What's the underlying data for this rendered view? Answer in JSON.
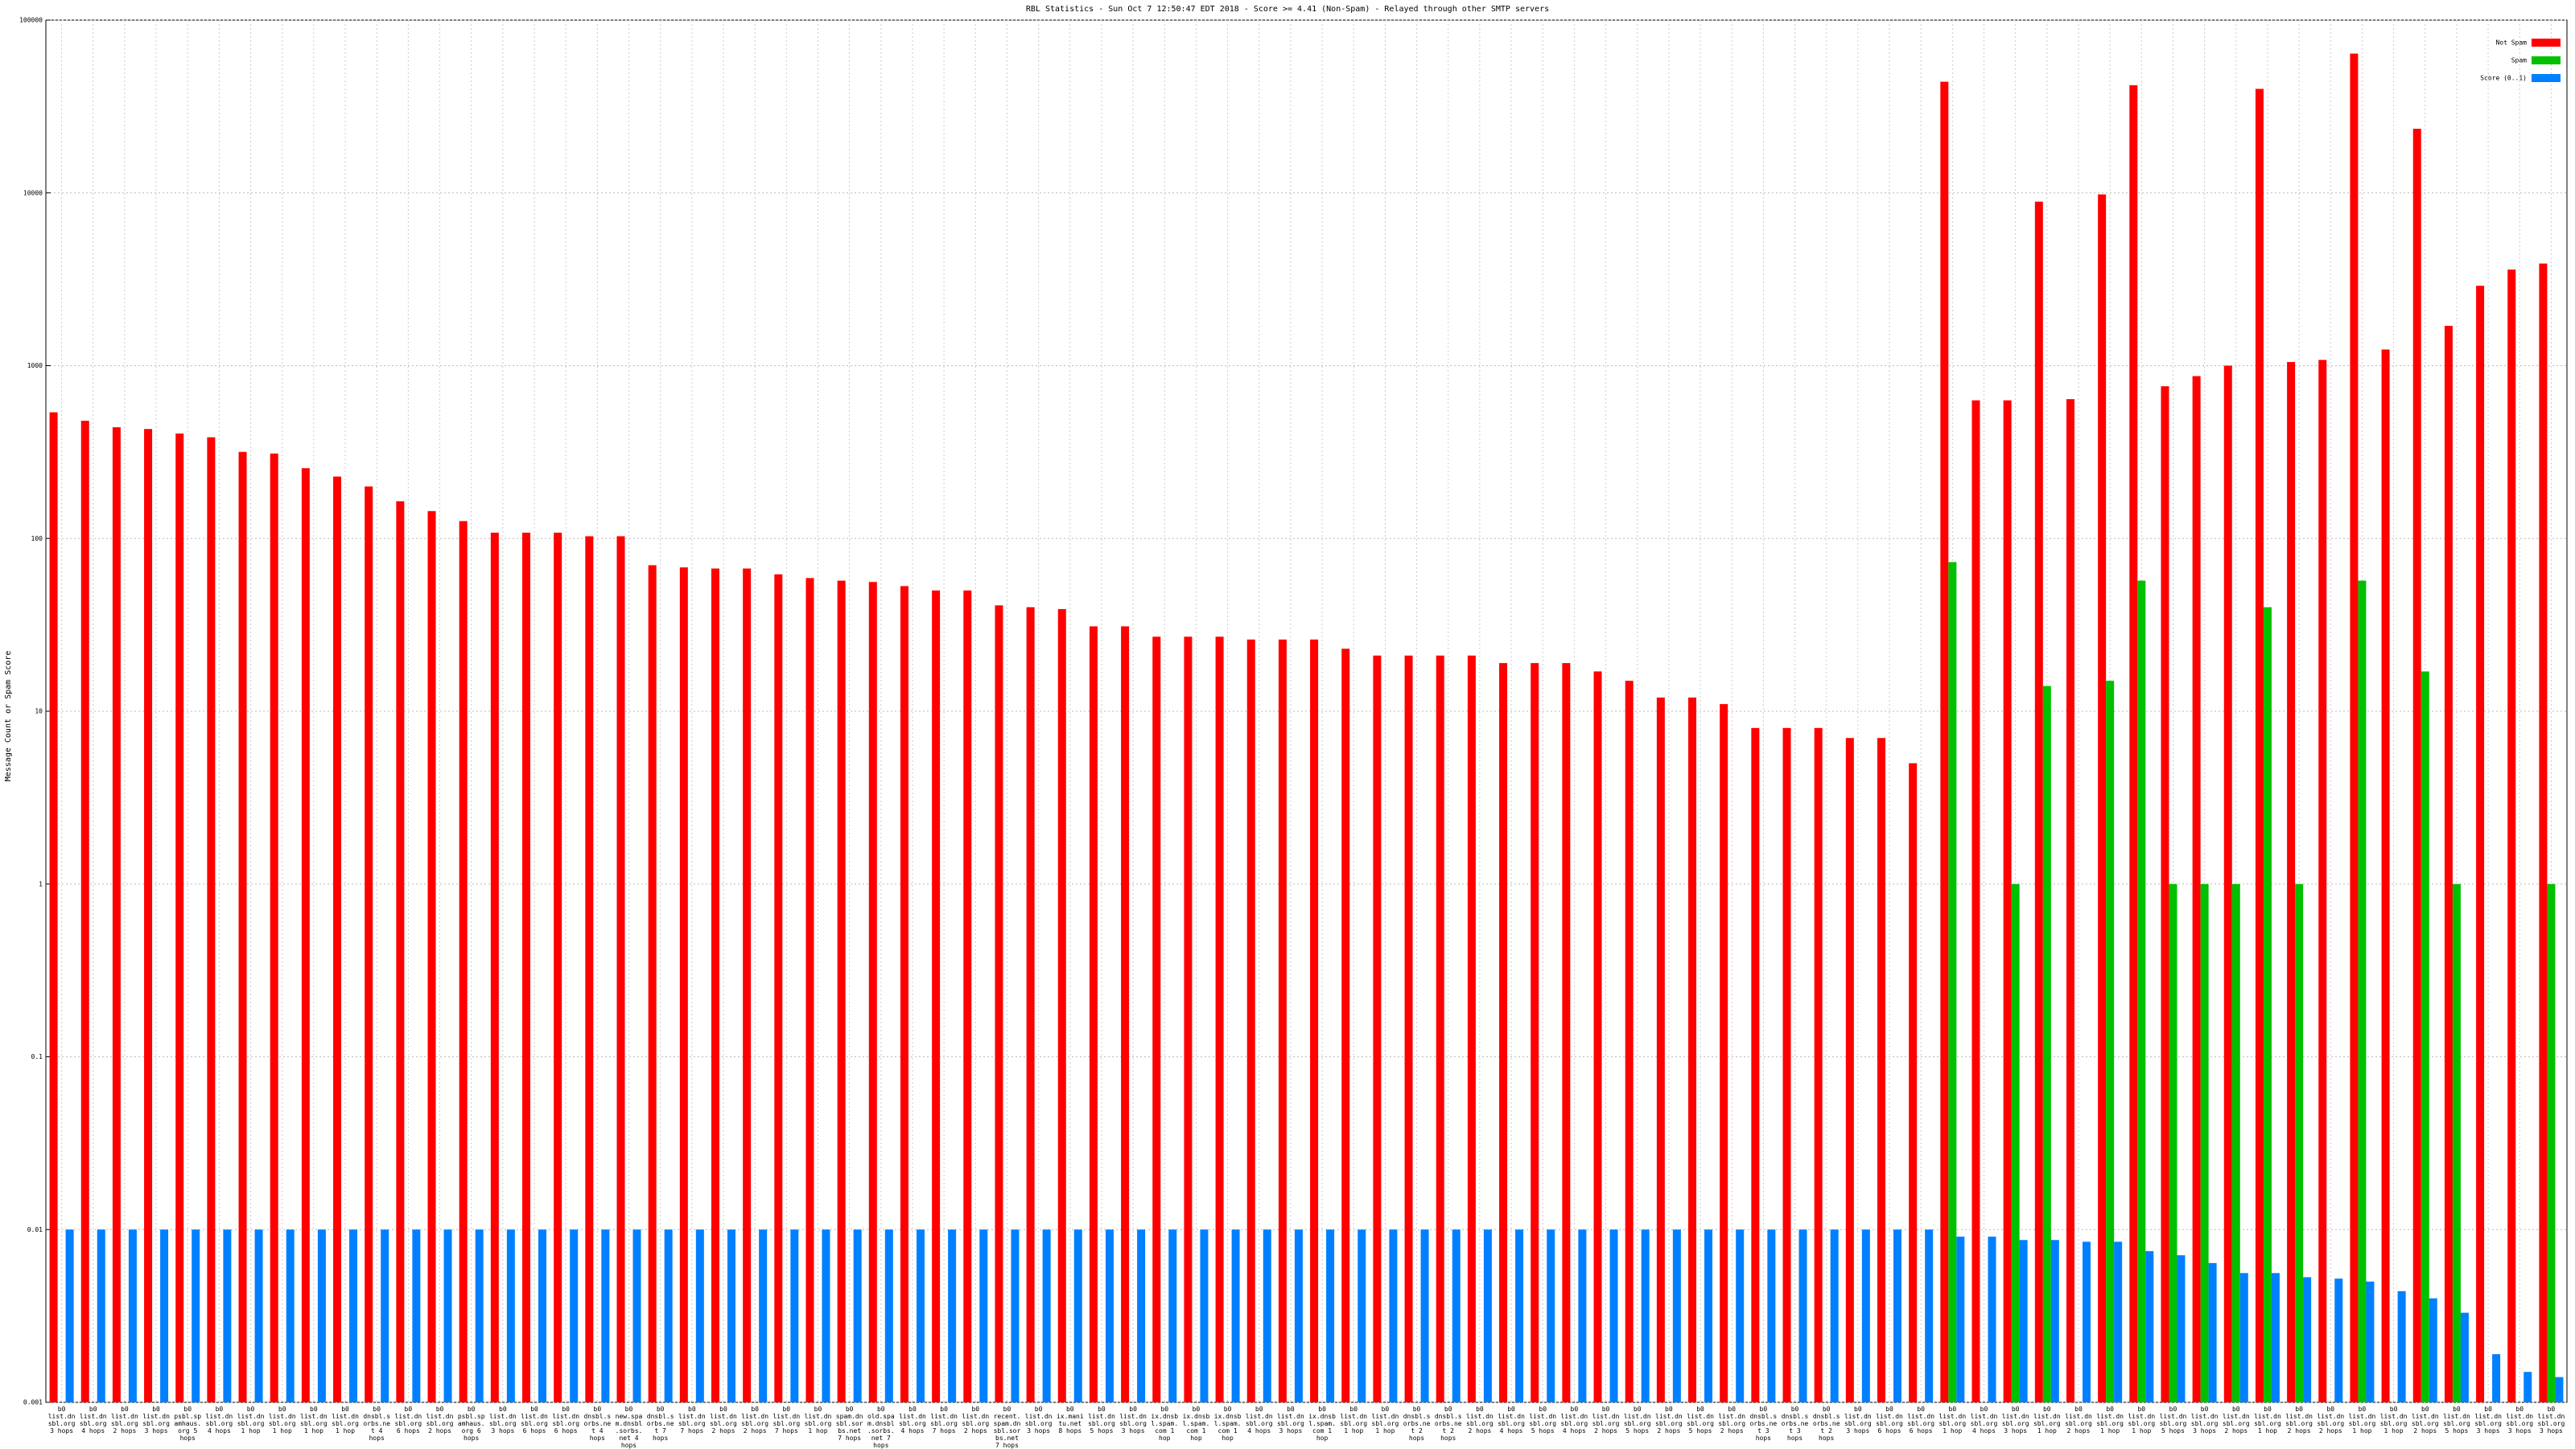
{
  "chart_data": {
    "type": "bar",
    "title": "RBL Statistics - Sun Oct  7 12:50:47 EDT 2018 - Score >= 4.41 (Non-Spam) - Relayed through other SMTP servers",
    "y_label": "Message Count or Spam Score",
    "log_scale": true,
    "grid": true,
    "legend": "top-right",
    "ylim": [
      0.001,
      100000
    ],
    "yticks": [
      0.001,
      0.01,
      0.1,
      1,
      10,
      100,
      1000,
      10000,
      100000
    ],
    "categories": [
      "b0 list.dnsbl.org 3 hops",
      "b0 list.dnsbl.org 4 hops",
      "b0 list.dnsbl.org 2 hops",
      "b0 list.dnsbl.org 3 hops",
      "b0 psbl.spamhaus.org 5 hops",
      "b0 list.dnsbl.org 4 hops",
      "b0 list.dnsbl.org 1 hop",
      "b0 list.dnsbl.org 1 hop",
      "b0 list.dnsbl.org 1 hop",
      "b0 list.dnsbl.org 1 hop",
      "b0 dnsbl.sorbs.net 4 hops",
      "b0 list.dnsbl.org 6 hops",
      "b0 list.dnsbl.org 2 hops",
      "b0 psbl.spamhaus.org 6 hops",
      "b0 list.dnsbl.org 3 hops",
      "b0 list.dnsbl.org 6 hops",
      "b0 list.dnsbl.org 6 hops",
      "b0 dnsbl.sorbs.net 4 hops",
      "b0 new.spam.dnsbl.sorbs.net 4 hops",
      "b0 dnsbl.sorbs.net 7 hops",
      "b0 list.dnsbl.org 7 hops",
      "b0 list.dnsbl.org 2 hops",
      "b0 list.dnsbl.org 2 hops",
      "b0 list.dnsbl.org 7 hops",
      "b0 list.dnsbl.org 1 hop",
      "b0 spam.dnsbl.sorbs.net 7 hops",
      "b0 old.spam.dnsbl.sorbs.net 7 hops",
      "b0 list.dnsbl.org 4 hops",
      "b0 list.dnsbl.org 7 hops",
      "b0 list.dnsbl.org 2 hops",
      "b0 recent.spam.dnsbl.sorbs.net 7 hops",
      "b0 list.dnsbl.org 3 hops",
      "b0 ix.manitu.net 8 hops",
      "b0 list.dnsbl.org 5 hops",
      "b0 list.dnsbl.org 3 hops",
      "b0 ix.dnsbl.spam.com 1 hop",
      "b0 ix.dnsbl.spam.com 1 hop",
      "b0 ix.dnsbl.spam.com 1 hop",
      "b0 list.dnsbl.org 4 hops",
      "b0 list.dnsbl.org 3 hops",
      "b0 ix.dnsbl.spam.com 1 hop",
      "b0 list.dnsbl.org 1 hop",
      "b0 list.dnsbl.org 1 hop",
      "b0 dnsbl.sorbs.net 2 hops",
      "b0 dnsbl.sorbs.net 2 hops",
      "b0 list.dnsbl.org 2 hops",
      "b0 list.dnsbl.org 4 hops",
      "b0 list.dnsbl.org 5 hops",
      "b0 list.dnsbl.org 4 hops",
      "b0 list.dnsbl.org 2 hops",
      "b0 list.dnsbl.org 5 hops",
      "b0 list.dnsbl.org 2 hops",
      "b0 list.dnsbl.org 5 hops",
      "b0 list.dnsbl.org 2 hops",
      "b0 dnsbl.sorbs.net 3 hops",
      "b0 dnsbl.sorbs.net 3 hops",
      "b0 dnsbl.sorbs.net 2 hops",
      "b0 list.dnsbl.org 3 hops",
      "b0 list.dnsbl.org 6 hops",
      "b0 list.dnsbl.org 6 hops",
      "b0 list.dnsbl.org 1 hop",
      "b0 list.dnsbl.org 4 hops",
      "b0 list.dnsbl.org 3 hops",
      "b0 list.dnsbl.org 1 hop",
      "b0 list.dnsbl.org 2 hops",
      "b0 list.dnsbl.org 1 hop",
      "b0 list.dnsbl.org 1 hop",
      "b0 list.dnsbl.org 5 hops",
      "b0 list.dnsbl.org 3 hops",
      "b0 list.dnsbl.org 2 hops",
      "b0 list.dnsbl.org 1 hop",
      "b0 list.dnsbl.org 2 hops",
      "b0 list.dnsbl.org 2 hops",
      "b0 list.dnsbl.org 1 hop",
      "b0 list.dnsbl.org 1 hop",
      "b0 list.dnsbl.org 2 hops",
      "b0 list.dnsbl.org 5 hops",
      "b0 list.dnsbl.org 3 hops",
      "b0 list.dnsbl.org 3 hops",
      "b0 list.dnsbl.org 3 hops"
    ],
    "series": [
      {
        "name": "Not Spam",
        "color": "#ff0000",
        "values": [
          537,
          480,
          440,
          430,
          405,
          385,
          317,
          310,
          255,
          228,
          200,
          164,
          144,
          126,
          108,
          108,
          108,
          103,
          103,
          70,
          68,
          67,
          67,
          62,
          59,
          57,
          56,
          53,
          50,
          50,
          41,
          40,
          39,
          31,
          31,
          27,
          27,
          27,
          26,
          26,
          26,
          23,
          21,
          21,
          21,
          21,
          19,
          19,
          19,
          17,
          15,
          12,
          12,
          11,
          8,
          8,
          8,
          7,
          7,
          5,
          44000,
          630,
          630,
          8900,
          640,
          9800,
          42000,
          760,
          870,
          1000,
          40000,
          1050,
          1080,
          64000,
          1240,
          23500,
          1700,
          2900,
          3600,
          3900
        ]
      },
      {
        "name": "Spam",
        "color": "#00c000",
        "values": [
          null,
          null,
          null,
          null,
          null,
          null,
          null,
          null,
          null,
          null,
          null,
          null,
          null,
          null,
          null,
          null,
          null,
          null,
          null,
          null,
          null,
          null,
          null,
          null,
          null,
          null,
          null,
          null,
          null,
          null,
          null,
          null,
          null,
          null,
          null,
          null,
          null,
          null,
          null,
          null,
          null,
          null,
          null,
          null,
          null,
          null,
          null,
          null,
          null,
          null,
          null,
          null,
          null,
          null,
          null,
          null,
          null,
          null,
          null,
          null,
          73,
          null,
          1,
          14,
          null,
          15,
          57,
          1,
          1,
          1,
          40,
          1,
          null,
          57,
          null,
          17,
          1,
          null,
          null,
          1
        ]
      },
      {
        "name": "Score (0..1)",
        "color": "#0080ff",
        "values": [
          0.01,
          0.01,
          0.01,
          0.01,
          0.01,
          0.01,
          0.01,
          0.01,
          0.01,
          0.01,
          0.01,
          0.01,
          0.01,
          0.01,
          0.01,
          0.01,
          0.01,
          0.01,
          0.01,
          0.01,
          0.01,
          0.01,
          0.01,
          0.01,
          0.01,
          0.01,
          0.01,
          0.01,
          0.01,
          0.01,
          0.01,
          0.01,
          0.01,
          0.01,
          0.01,
          0.01,
          0.01,
          0.01,
          0.01,
          0.01,
          0.01,
          0.01,
          0.01,
          0.01,
          0.01,
          0.01,
          0.01,
          0.01,
          0.01,
          0.01,
          0.01,
          0.01,
          0.01,
          0.01,
          0.01,
          0.01,
          0.01,
          0.01,
          0.01,
          0.01,
          0.0091,
          0.0091,
          0.0087,
          0.0087,
          0.0085,
          0.0085,
          0.0075,
          0.0071,
          0.0064,
          0.0056,
          0.0056,
          0.0053,
          0.0052,
          0.005,
          0.0044,
          0.004,
          0.0033,
          0.0019,
          0.0015,
          0.0014
        ]
      }
    ]
  }
}
